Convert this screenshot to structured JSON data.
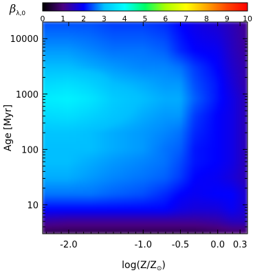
{
  "chart_data": {
    "type": "heatmap",
    "colorbar": {
      "title_main": "β",
      "title_sub": "λ,0",
      "range": [
        0,
        10
      ],
      "ticks": [
        "0",
        "1",
        "2",
        "3",
        "4",
        "5",
        "6",
        "7",
        "8",
        "9",
        "10"
      ],
      "colormap": [
        "#000000",
        "#4b0082",
        "#0000ff",
        "#00bfff",
        "#00ffff",
        "#00ff66",
        "#aaff00",
        "#ffff00",
        "#ffa500",
        "#ff4500",
        "#ff0000"
      ]
    },
    "x": {
      "label_main": "log(Z/Z",
      "label_sub": "⊙",
      "label_close": ")",
      "range": [
        -2.35,
        0.4
      ],
      "ticks": [
        {
          "value": -2.0,
          "label": "-2.0"
        },
        {
          "value": -1.0,
          "label": "-1.0"
        },
        {
          "value": -0.5,
          "label": "-0.5"
        },
        {
          "value": 0.0,
          "label": "0.0"
        },
        {
          "value": 0.3,
          "label": "0.3"
        }
      ]
    },
    "y": {
      "label_main": "Age",
      "label_unit": "[Myr]",
      "scale": "log",
      "range": [
        3,
        20000
      ],
      "ticks": [
        {
          "value": 10,
          "label": "10"
        },
        {
          "value": 100,
          "label": "100"
        },
        {
          "value": 1000,
          "label": "1000"
        },
        {
          "value": 10000,
          "label": "10000"
        }
      ]
    },
    "values": {
      "x_nodes": [
        -2.35,
        -2.0,
        -1.7,
        -1.4,
        -1.0,
        -0.7,
        -0.5,
        -0.3,
        0.0,
        0.2,
        0.4
      ],
      "age_nodes": [
        3,
        5,
        8,
        15,
        30,
        60,
        100,
        200,
        400,
        800,
        1500,
        3000,
        6000,
        20000
      ],
      "beta": [
        [
          0.6,
          0.6,
          0.6,
          0.6,
          0.6,
          0.6,
          0.6,
          0.6,
          0.7,
          0.8,
          0.8
        ],
        [
          1.3,
          1.2,
          1.2,
          1.2,
          1.2,
          1.2,
          1.2,
          1.2,
          1.3,
          1.5,
          1.5
        ],
        [
          2.0,
          2.0,
          2.0,
          2.0,
          2.0,
          2.0,
          1.8,
          1.7,
          1.7,
          1.9,
          1.6
        ],
        [
          2.6,
          2.6,
          2.6,
          2.5,
          2.4,
          2.2,
          2.0,
          1.9,
          2.0,
          2.0,
          1.6
        ],
        [
          2.9,
          2.9,
          2.8,
          2.7,
          2.6,
          2.5,
          2.3,
          2.0,
          1.9,
          1.7,
          1.4
        ],
        [
          3.0,
          3.0,
          2.9,
          2.8,
          2.7,
          2.6,
          2.4,
          2.1,
          2.0,
          1.8,
          1.4
        ],
        [
          3.0,
          3.0,
          3.0,
          2.9,
          2.8,
          2.6,
          2.5,
          2.1,
          2.0,
          1.8,
          1.4
        ],
        [
          3.1,
          3.1,
          3.0,
          2.9,
          2.8,
          2.7,
          2.6,
          2.2,
          2.0,
          1.8,
          1.4
        ],
        [
          3.4,
          3.5,
          3.3,
          3.1,
          2.9,
          2.8,
          2.8,
          2.3,
          2.0,
          1.8,
          1.4
        ],
        [
          3.7,
          3.8,
          3.6,
          3.2,
          3.0,
          2.9,
          2.9,
          2.5,
          2.1,
          1.8,
          1.4
        ],
        [
          3.4,
          3.5,
          3.3,
          3.0,
          2.9,
          2.8,
          2.8,
          2.4,
          2.1,
          1.7,
          1.3
        ],
        [
          3.0,
          3.0,
          2.9,
          2.8,
          2.7,
          2.7,
          2.6,
          2.3,
          2.0,
          1.6,
          1.3
        ],
        [
          2.8,
          2.8,
          2.7,
          2.6,
          2.6,
          2.5,
          2.2,
          2.0,
          1.9,
          1.5,
          1.2
        ],
        [
          2.4,
          2.4,
          2.4,
          2.3,
          2.3,
          2.2,
          2.0,
          1.8,
          1.6,
          1.4,
          1.1
        ]
      ]
    }
  }
}
